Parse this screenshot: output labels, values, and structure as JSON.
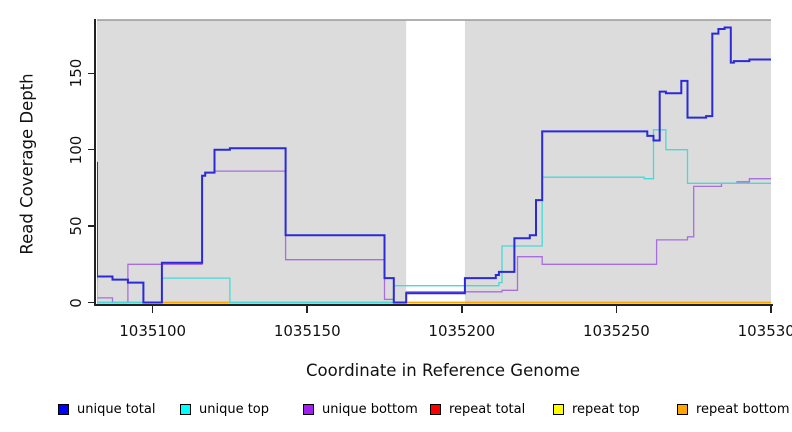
{
  "x_axis": {
    "label": "Coordinate in Reference Genome",
    "min": 1035082,
    "max": 1035300,
    "ticks": [
      {
        "value": 1035100,
        "label": "1035100"
      },
      {
        "value": 1035150,
        "label": "1035150"
      },
      {
        "value": 1035200,
        "label": "1035200"
      },
      {
        "value": 1035250,
        "label": "1035250"
      },
      {
        "value": 1035300,
        "label": "1035300"
      }
    ]
  },
  "y_axis": {
    "label": "Read Coverage Depth",
    "min": 0,
    "max": 185,
    "ticks": [
      {
        "value": 0,
        "label": "0"
      },
      {
        "value": 50,
        "label": "50"
      },
      {
        "value": 100,
        "label": "100"
      },
      {
        "value": 150,
        "label": "150"
      }
    ]
  },
  "chart_data": {
    "type": "line",
    "subtype": "step",
    "plot_background": "#dcdcdc",
    "plot_border_color": "#999999",
    "no_data_region": {
      "x_start": 1035182,
      "x_end": 1035201,
      "color": "#ffffff"
    },
    "grid": "off",
    "legend_position": "bottom",
    "series": [
      {
        "name": "repeat total",
        "color": "#e03030",
        "swatch": "#ff0000",
        "width": 1.2,
        "points": [
          [
            1035082,
            0
          ],
          [
            1035300,
            0
          ]
        ]
      },
      {
        "name": "repeat top",
        "color": "#f0e030",
        "swatch": "#ffff00",
        "width": 1.2,
        "points": [
          [
            1035082,
            0
          ],
          [
            1035300,
            0
          ]
        ]
      },
      {
        "name": "repeat bottom",
        "color": "#ffa500",
        "swatch": "#ffa500",
        "width": 1.6,
        "points": [
          [
            1035082,
            0
          ],
          [
            1035300,
            0
          ]
        ]
      },
      {
        "name": "unique bottom",
        "color": "#a86ede",
        "swatch": "#a020f0",
        "width": 1.3,
        "points": [
          [
            1035082,
            78
          ],
          [
            1035087,
            3
          ],
          [
            1035092,
            0
          ],
          [
            1035116,
            25
          ],
          [
            1035117,
            83
          ],
          [
            1035120,
            85
          ],
          [
            1035143,
            86
          ],
          [
            1035175,
            28
          ],
          [
            1035178,
            2
          ],
          [
            1035182,
            0
          ],
          [
            1035213,
            7
          ],
          [
            1035218,
            8
          ],
          [
            1035226,
            30
          ],
          [
            1035263,
            25
          ],
          [
            1035273,
            41
          ],
          [
            1035275,
            43
          ],
          [
            1035284,
            76
          ],
          [
            1035289,
            78
          ],
          [
            1035293,
            79
          ],
          [
            1035297,
            81
          ],
          [
            1035300,
            81
          ]
        ]
      },
      {
        "name": "unique top",
        "color": "#49d8d8",
        "swatch": "#00ffff",
        "width": 1.3,
        "points": [
          [
            1035082,
            14
          ],
          [
            1035103,
            0
          ],
          [
            1035125,
            16
          ],
          [
            1035178,
            0
          ],
          [
            1035212,
            11
          ],
          [
            1035213,
            13
          ],
          [
            1035226,
            37
          ],
          [
            1035259,
            82
          ],
          [
            1035262,
            81
          ],
          [
            1035266,
            113
          ],
          [
            1035273,
            100
          ],
          [
            1035288,
            78
          ],
          [
            1035300,
            78
          ]
        ]
      },
      {
        "name": "unique total",
        "color": "#2a2ad8",
        "swatch": "#0000ff",
        "width": 2,
        "points": [
          [
            1035082,
            92
          ],
          [
            1035087,
            17
          ],
          [
            1035092,
            15
          ],
          [
            1035097,
            13
          ],
          [
            1035103,
            0
          ],
          [
            1035116,
            26
          ],
          [
            1035117,
            83
          ],
          [
            1035120,
            85
          ],
          [
            1035125,
            100
          ],
          [
            1035143,
            101
          ],
          [
            1035175,
            44
          ],
          [
            1035178,
            16
          ],
          [
            1035182,
            0
          ],
          [
            1035201,
            6
          ],
          [
            1035211,
            16
          ],
          [
            1035212,
            18
          ],
          [
            1035217,
            20
          ],
          [
            1035222,
            42
          ],
          [
            1035224,
            44
          ],
          [
            1035226,
            67
          ],
          [
            1035260,
            112
          ],
          [
            1035262,
            109
          ],
          [
            1035264,
            106
          ],
          [
            1035266,
            138
          ],
          [
            1035271,
            137
          ],
          [
            1035273,
            145
          ],
          [
            1035279,
            121
          ],
          [
            1035281,
            122
          ],
          [
            1035283,
            176
          ],
          [
            1035285,
            179
          ],
          [
            1035287,
            180
          ],
          [
            1035288,
            157
          ],
          [
            1035293,
            158
          ],
          [
            1035297,
            159
          ],
          [
            1035300,
            159
          ]
        ]
      }
    ]
  },
  "legend": {
    "items": [
      {
        "label": "unique total",
        "swatch": "#0000ff"
      },
      {
        "label": "unique top",
        "swatch": "#00ffff"
      },
      {
        "label": "unique bottom",
        "swatch": "#a020f0"
      },
      {
        "label": "repeat total",
        "swatch": "#ff0000"
      },
      {
        "label": "repeat top",
        "swatch": "#ffff00"
      },
      {
        "label": "repeat bottom",
        "swatch": "#ffa500"
      }
    ]
  }
}
